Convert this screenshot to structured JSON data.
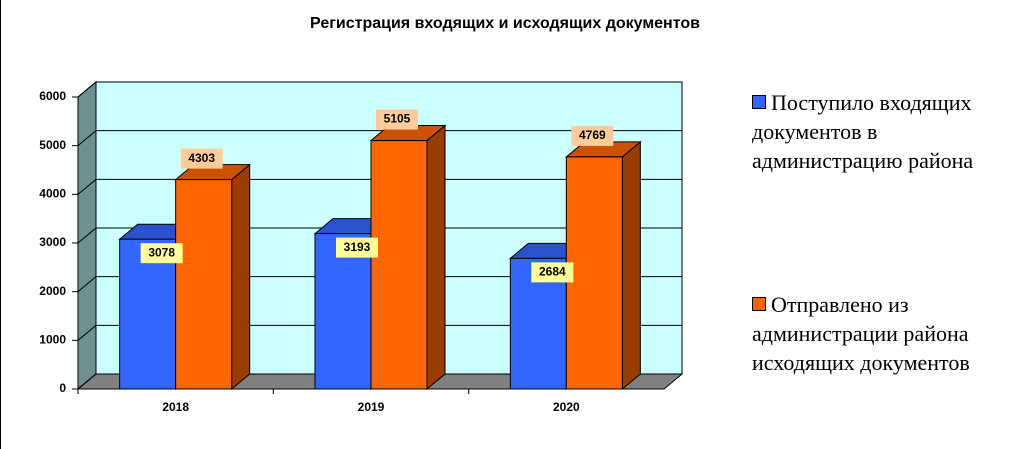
{
  "chart_data": {
    "type": "bar3d",
    "title": "Регистрация входящих и исходящих документов",
    "categories": [
      "2018",
      "2019",
      "2020"
    ],
    "series": [
      {
        "name": "Поступило входящих документов в администрацию района",
        "color": "#3366ff",
        "label_color": "#ffff99",
        "values": [
          3078,
          3193,
          2684
        ]
      },
      {
        "name": "Отправлено из администрации района исходящих документов",
        "color": "#ff6600",
        "label_color": "#ffcc99",
        "values": [
          4303,
          5105,
          4769
        ]
      }
    ],
    "ylim": [
      0,
      6000
    ],
    "yticks": [
      0,
      1000,
      2000,
      3000,
      4000,
      5000,
      6000
    ],
    "grid": true,
    "legend": "right"
  }
}
